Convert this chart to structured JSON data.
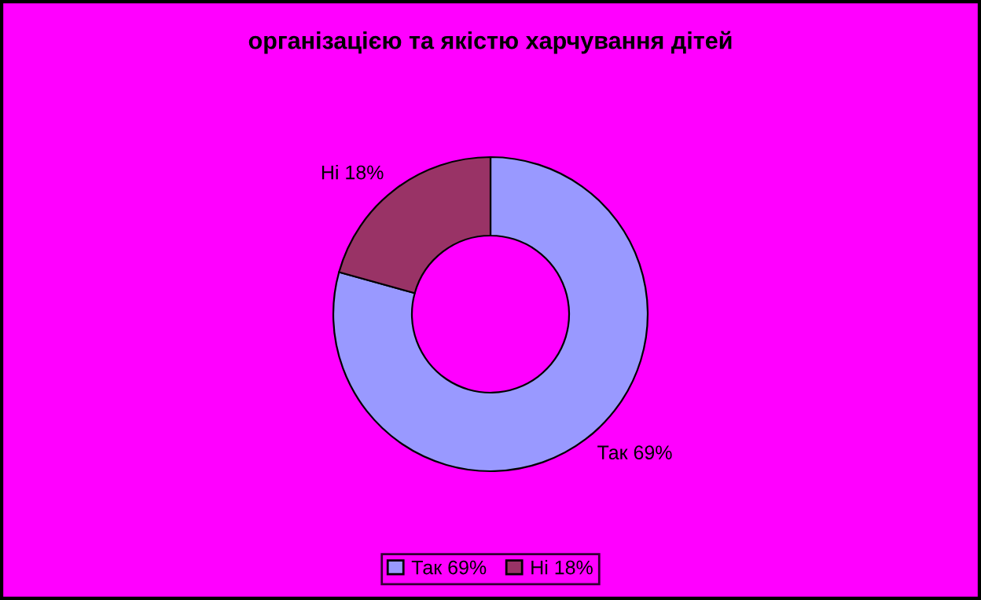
{
  "chart_data": {
    "type": "donut",
    "title": "організацією та якістю харчування дітей",
    "categories": [
      "Так 69%",
      "Ні 18%"
    ],
    "values": [
      69,
      18
    ],
    "colors": [
      "#9999ff",
      "#993366"
    ],
    "legend": "bottom"
  }
}
